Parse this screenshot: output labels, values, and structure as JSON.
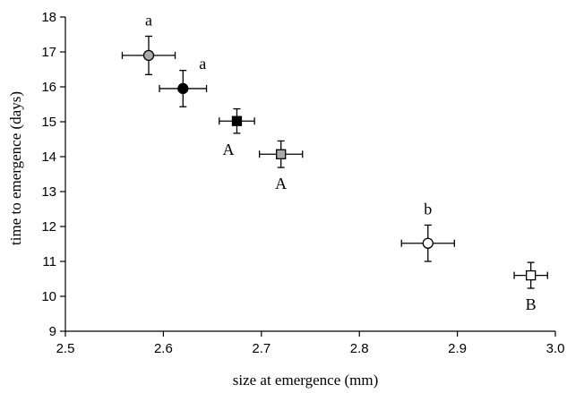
{
  "chart_data": {
    "type": "scatter",
    "title": "",
    "xlabel": "size at emergence (mm)",
    "ylabel": "time to emergence (days)",
    "xlim": [
      2.5,
      3.0
    ],
    "ylim": [
      9,
      18
    ],
    "xticks": [
      "2.5",
      "2.6",
      "2.7",
      "2.8",
      "2.9",
      "3.0"
    ],
    "yticks": [
      "9",
      "10",
      "11",
      "12",
      "13",
      "14",
      "15",
      "16",
      "17",
      "18"
    ],
    "grid": false,
    "legend": "none",
    "points": [
      {
        "marker": "circle",
        "fill": "#aaaaaa",
        "x": 2.585,
        "y": 16.9,
        "xerr": 0.027,
        "yerr": 0.55,
        "label": "a",
        "label_pos": "above"
      },
      {
        "marker": "circle",
        "fill": "#000000",
        "x": 2.62,
        "y": 15.95,
        "xerr": 0.024,
        "yerr": 0.52,
        "label": "a",
        "label_pos": "upper-right"
      },
      {
        "marker": "square",
        "fill": "#000000",
        "x": 2.675,
        "y": 15.02,
        "xerr": 0.018,
        "yerr": 0.35,
        "label": "A",
        "label_pos": "lower-left"
      },
      {
        "marker": "square",
        "fill": "#aaaaaa",
        "x": 2.72,
        "y": 14.07,
        "xerr": 0.022,
        "yerr": 0.38,
        "label": "A",
        "label_pos": "below"
      },
      {
        "marker": "circle",
        "fill": "#ffffff",
        "x": 2.87,
        "y": 11.52,
        "xerr": 0.027,
        "yerr": 0.52,
        "label": "b",
        "label_pos": "above"
      },
      {
        "marker": "square",
        "fill": "#ffffff",
        "x": 2.975,
        "y": 10.6,
        "xerr": 0.017,
        "yerr": 0.37,
        "label": "B",
        "label_pos": "below"
      }
    ]
  }
}
